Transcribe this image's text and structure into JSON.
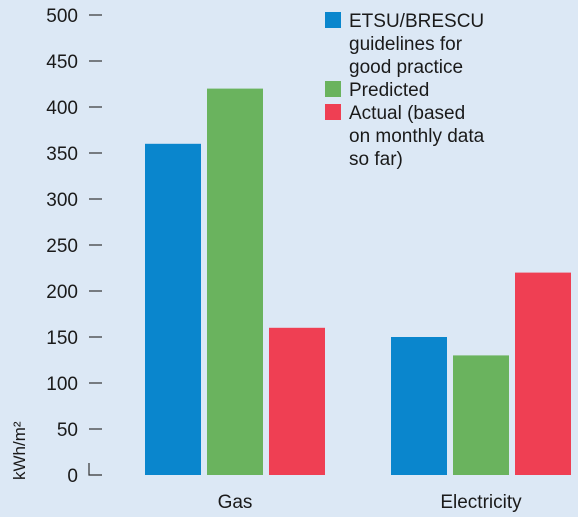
{
  "chart_data": {
    "type": "bar",
    "categories": [
      "Gas",
      "Electricity"
    ],
    "series": [
      {
        "name": "ETSU/BRESCU guidelines for good practice",
        "values": [
          360,
          150
        ],
        "color": "#0a86cd"
      },
      {
        "name": "Predicted",
        "values": [
          420,
          130
        ],
        "color": "#6ab35e"
      },
      {
        "name": "Actual (based on monthly data so far)",
        "values": [
          160,
          220
        ],
        "color": "#ef3f53"
      }
    ],
    "legend_lines": [
      [
        "ETSU/BRESCU",
        "guidelines for",
        "good practice"
      ],
      [
        "Predicted"
      ],
      [
        "Actual (based",
        "on monthly data",
        "so far)"
      ]
    ],
    "ylabel": "kWh/m²",
    "ylim": [
      0,
      500
    ],
    "yticks": [
      0,
      50,
      100,
      150,
      200,
      250,
      300,
      350,
      400,
      450,
      500
    ],
    "grid": false,
    "legend_position": "top-right",
    "background": "#dce8f5"
  }
}
